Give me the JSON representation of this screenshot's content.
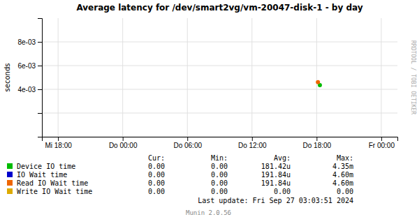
{
  "chart_data": {
    "type": "scatter",
    "title": "Average latency for /dev/smart2vg/vm-20047-disk-1 - by day",
    "y_label": "seconds",
    "grid": true,
    "xlim": [
      -0.25,
      5.25
    ],
    "xticks": [
      {
        "value": 0,
        "label": "Mi 18:00"
      },
      {
        "value": 1,
        "label": "Do 00:00"
      },
      {
        "value": 2,
        "label": "Do 06:00"
      },
      {
        "value": 3,
        "label": "Do 12:00"
      },
      {
        "value": 4,
        "label": "Do 18:00"
      },
      {
        "value": 5,
        "label": "Fr 00:00"
      }
    ],
    "ylim": [
      0,
      0.01
    ],
    "yticks": [
      {
        "value": 0.0,
        "label": null
      },
      {
        "value": 0.002,
        "label": null
      },
      {
        "value": 0.004,
        "label": "4e-03"
      },
      {
        "value": 0.006,
        "label": "6e-03"
      },
      {
        "value": 0.008,
        "label": "8e-03"
      }
    ],
    "legend_columns": [
      "Cur:",
      "Min:",
      "Avg:",
      "Max:"
    ],
    "series": [
      {
        "name": "Device IO time",
        "color": "#00bb00",
        "x": [
          4.05
        ],
        "values": [
          0.00435
        ],
        "legend_values": [
          "0.00",
          "0.00",
          "181.42u",
          "4.35m"
        ]
      },
      {
        "name": "IO Wait time",
        "color": "#0000cc",
        "x": [],
        "values": [],
        "legend_values": [
          "0.00",
          "0.00",
          "191.84u",
          "4.60m"
        ]
      },
      {
        "name": "Read IO Wait time",
        "color": "#ee6600",
        "x": [
          4.02
        ],
        "values": [
          0.0046
        ],
        "legend_values": [
          "0.00",
          "0.00",
          "191.84u",
          "4.60m"
        ]
      },
      {
        "name": "Write IO Wait time",
        "color": "#ddaa00",
        "x": [],
        "values": [],
        "legend_values": [
          "0.00",
          "0.00",
          "0.00",
          "0.00"
        ]
      }
    ],
    "annotations": [
      "RRDTOOL / TOBI OETIKER",
      "Last update: Fri Sep 27 03:03:51 2024",
      "Munin 2.0.56"
    ]
  }
}
